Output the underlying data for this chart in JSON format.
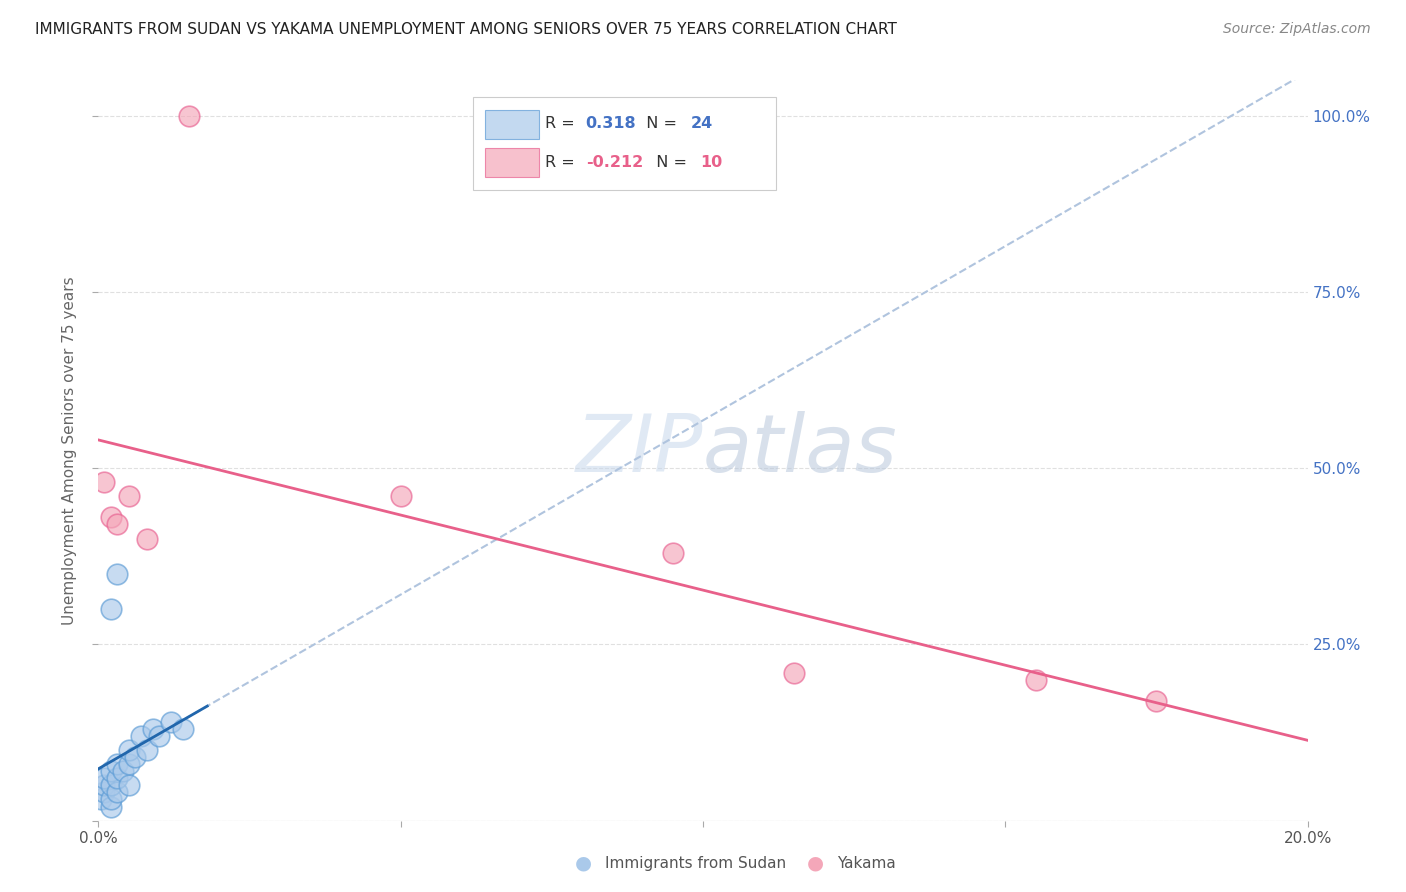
{
  "title": "IMMIGRANTS FROM SUDAN VS YAKAMA UNEMPLOYMENT AMONG SENIORS OVER 75 YEARS CORRELATION CHART",
  "source": "Source: ZipAtlas.com",
  "ylabel": "Unemployment Among Seniors over 75 years",
  "xlim": [
    0.0,
    0.2
  ],
  "ylim": [
    0.0,
    1.05
  ],
  "legend1_r": "0.318",
  "legend1_n": "24",
  "legend2_r": "-0.212",
  "legend2_n": "10",
  "blue_fill": "#aac9ea",
  "blue_edge": "#5b9bd5",
  "pink_fill": "#f4a7b9",
  "pink_edge": "#e86090",
  "blue_line_color": "#2166ac",
  "pink_line_color": "#e8608a",
  "dashed_color": "#b0c4de",
  "watermark_color": "#d0dce8",
  "background_color": "#ffffff",
  "grid_color": "#e0e0e0",
  "right_tick_color": "#4472c4",
  "blue_x": [
    0.0005,
    0.001,
    0.001,
    0.001,
    0.002,
    0.002,
    0.002,
    0.002,
    0.003,
    0.003,
    0.003,
    0.004,
    0.005,
    0.005,
    0.005,
    0.006,
    0.007,
    0.008,
    0.009,
    0.01,
    0.012,
    0.014,
    0.002,
    0.003
  ],
  "blue_y": [
    0.03,
    0.04,
    0.05,
    0.06,
    0.02,
    0.03,
    0.05,
    0.07,
    0.04,
    0.06,
    0.08,
    0.07,
    0.05,
    0.08,
    0.1,
    0.09,
    0.12,
    0.1,
    0.13,
    0.12,
    0.14,
    0.13,
    0.3,
    0.35
  ],
  "pink_x": [
    0.001,
    0.002,
    0.003,
    0.005,
    0.008,
    0.05,
    0.095,
    0.115,
    0.155,
    0.175
  ],
  "pink_y": [
    0.48,
    0.43,
    0.42,
    0.46,
    0.4,
    0.46,
    0.38,
    0.21,
    0.2,
    0.17
  ],
  "pink_outlier_x": [
    0.015
  ],
  "pink_outlier_y": [
    1.0
  ],
  "title_fontsize": 11,
  "source_fontsize": 10,
  "legend_fontsize": 12,
  "tick_fontsize": 11,
  "ylabel_fontsize": 11
}
